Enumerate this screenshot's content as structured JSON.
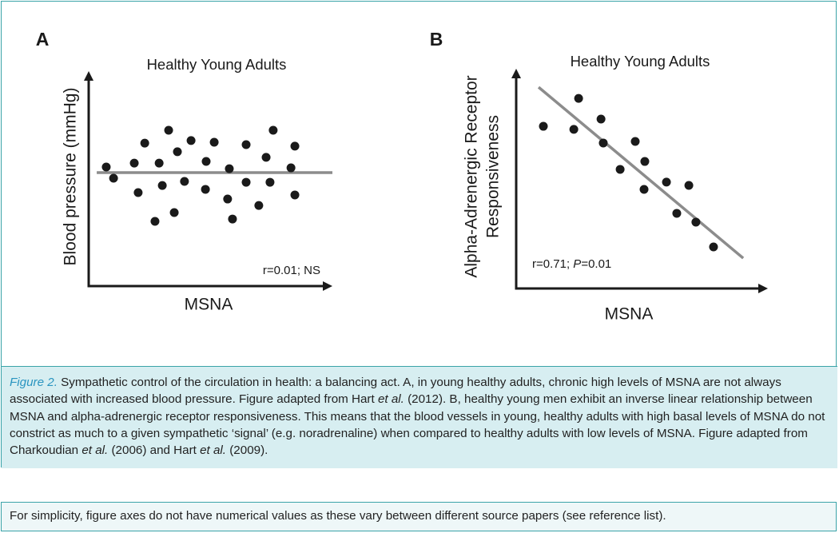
{
  "chart_data": [
    {
      "type": "scatter",
      "panel": "A",
      "title": "Healthy Young Adults",
      "xlabel": "MSNA",
      "ylabel": [
        "Blood pressure (mmHg)"
      ],
      "annotation": [
        "r=0.01; NS"
      ],
      "xlim": [
        0,
        100
      ],
      "ylim": [
        0,
        100
      ],
      "color": "#1a1a1a",
      "series": [
        {
          "x": [
            7.2,
            10.2,
            18.7,
            20.3,
            23.0,
            27.2,
            28.9,
            30.2,
            32.8,
            35.1,
            36.4,
            39.3,
            42.0,
            47.9,
            48.2,
            51.5,
            57.0,
            57.7,
            59.0,
            64.6,
            64.6,
            69.8,
            72.8,
            74.4,
            75.7,
            83.0,
            84.6,
            84.6
          ],
          "values": [
            55.4,
            50.2,
            57.2,
            43.5,
            66.5,
            30.1,
            57.2,
            46.8,
            72.5,
            34.2,
            62.5,
            48.7,
            67.7,
            45.0,
            58.0,
            66.9,
            40.5,
            54.6,
            31.2,
            65.8,
            48.3,
            37.5,
            59.9,
            48.3,
            72.5,
            55.0,
            65.1,
            42.4
          ]
        }
      ],
      "trend": {
        "x": [
          3.3,
          100
        ],
        "values": [
          52.8,
          52.8
        ],
        "color": "#8c8c8c"
      }
    },
    {
      "type": "scatter",
      "panel": "B",
      "title": "Healthy Young Adults",
      "xlabel": "MSNA",
      "ylabel": [
        "Alpha-Adrenergic Receptor",
        "Responsiveness"
      ],
      "annotation": [
        "r=0.71; ",
        "P",
        "=0.01"
      ],
      "xlim": [
        0,
        100
      ],
      "ylim": [
        0,
        100
      ],
      "color": "#1a1a1a",
      "series": [
        {
          "x": [
            10.8,
            22.9,
            24.8,
            33.7,
            34.6,
            41.3,
            47.3,
            50.8,
            51.1,
            59.7,
            63.8,
            68.6,
            71.4,
            78.4
          ],
          "values": [
            73.8,
            72.4,
            86.5,
            77.1,
            66.2,
            54.2,
            66.9,
            45.1,
            57.8,
            48.4,
            34.2,
            46.9,
            30.2,
            18.9
          ]
        }
      ],
      "trend": {
        "x": [
          8.9,
          90.2
        ],
        "values": [
          91.6,
          13.8
        ],
        "color": "#8c8c8c"
      }
    }
  ],
  "caption": {
    "label": "Figure 2.",
    "runs": [
      " Sympathetic control of the circulation in health: a balancing act. A, in young healthy adults, chronic high levels of MSNA are not always associated with increased blood pressure. Figure adapted from Hart ",
      "et al.",
      " (2012). B, healthy young men exhibit an inverse linear relationship between MSNA and alpha-adrenergic receptor responsiveness. This means that the blood vessels in young, healthy adults with high basal levels of MSNA do not constrict as much to a given sympathetic ‘signal’ (e.g. noradrenaline) when compared to healthy adults with low levels of MSNA. Figure adapted from Charkoudian ",
      "et al.",
      " (2006) and Hart ",
      "et al.",
      " (2009)."
    ]
  },
  "note": "For simplicity, figure axes do not have numerical values as these vary between different source papers (see reference list)."
}
